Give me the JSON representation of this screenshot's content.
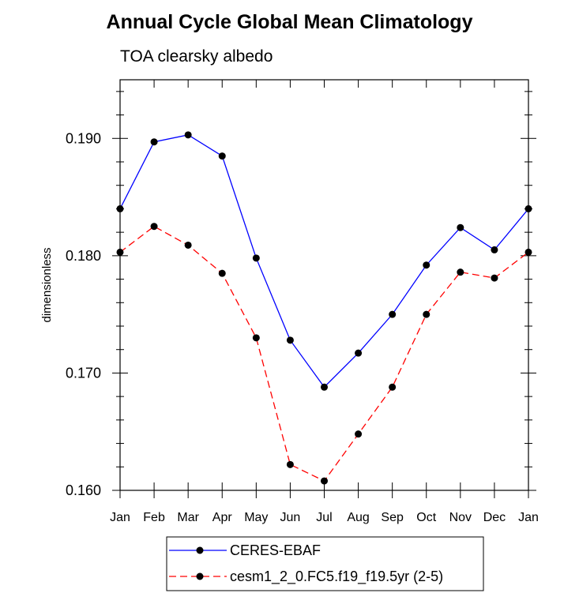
{
  "chart_data": {
    "type": "line",
    "title": "Annual Cycle Global Mean Climatology",
    "subtitle": "TOA clearsky albedo",
    "xlabel": "",
    "ylabel": "dimensionless",
    "categories": [
      "Jan",
      "Feb",
      "Mar",
      "Apr",
      "May",
      "Jun",
      "Jul",
      "Aug",
      "Sep",
      "Oct",
      "Nov",
      "Dec",
      "Jan"
    ],
    "ylim": [
      0.16,
      0.195
    ],
    "yticks": [
      "0.160",
      "0.170",
      "0.180",
      "0.190"
    ],
    "series": [
      {
        "name": "CERES-EBAF",
        "color": "#0000ff",
        "dash": "solid",
        "values": [
          0.184,
          0.1897,
          0.1903,
          0.1885,
          0.1798,
          0.1728,
          0.1688,
          0.1717,
          0.175,
          0.1792,
          0.1824,
          0.1805,
          0.184
        ]
      },
      {
        "name": "cesm1_2_0.FC5.f19_f19.5yr (2-5)",
        "color": "#ff0000",
        "dash": "dashed",
        "values": [
          0.1803,
          0.1825,
          0.1809,
          0.1785,
          0.173,
          0.1622,
          0.1608,
          0.1648,
          0.1688,
          0.175,
          0.1786,
          0.1781,
          0.1803
        ]
      }
    ],
    "grid": false,
    "legend_position": "bottom"
  }
}
